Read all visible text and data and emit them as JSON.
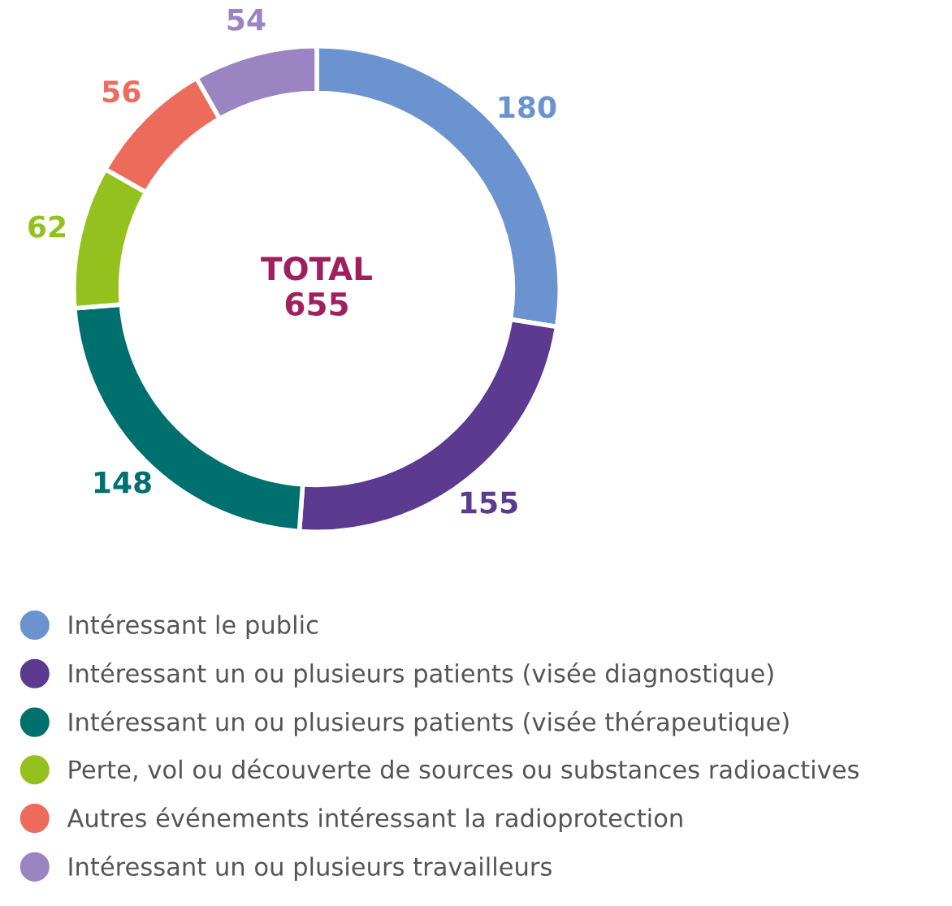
{
  "chart_data": {
    "type": "donut",
    "categories": [
      "Intéressant le public",
      "Intéressant un ou plusieurs patients (visée diagnostique)",
      "Intéressant un ou plusieurs patients (visée thérapeutique)",
      "Perte, vol ou découverte de sources ou substances radioactives",
      "Autres événements intéressant la radioprotection",
      "Intéressant un ou plusieurs travailleurs"
    ],
    "values": [
      180,
      155,
      148,
      62,
      56,
      54
    ],
    "colors": [
      "#6a93d0",
      "#5b3a8f",
      "#00706f",
      "#95c11f",
      "#ec6b5b",
      "#9b84c2"
    ],
    "data_labels": true,
    "legend": "bottom",
    "annotations": [
      "TOTAL\n655"
    ]
  }
}
